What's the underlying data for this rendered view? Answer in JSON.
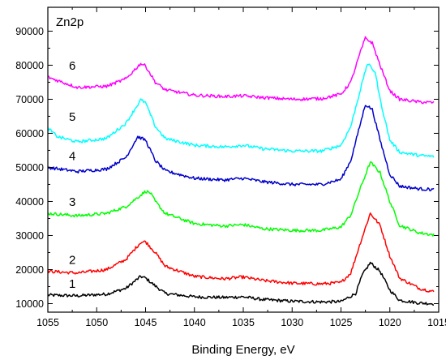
{
  "chart_data": {
    "type": "line",
    "title": "Zn2p",
    "xlabel": "Binding Energy, eV",
    "ylabel": "",
    "xlim": [
      1055,
      1015
    ],
    "ylim": [
      7500,
      97000
    ],
    "x_reversed": true,
    "grid": false,
    "legend": "none",
    "x_ticks": [
      1055,
      1050,
      1045,
      1040,
      1035,
      1030,
      1025,
      1020,
      1015
    ],
    "y_ticks": [
      10000,
      20000,
      30000,
      40000,
      50000,
      60000,
      70000,
      80000,
      90000
    ],
    "series": [
      {
        "name": "1",
        "color": "#000000",
        "points": [
          [
            1055,
            12500
          ],
          [
            1052,
            12300
          ],
          [
            1049,
            12800
          ],
          [
            1047,
            14500
          ],
          [
            1045.5,
            18000
          ],
          [
            1045,
            17500
          ],
          [
            1044,
            15200
          ],
          [
            1043,
            13000
          ],
          [
            1040,
            12000
          ],
          [
            1037,
            11800
          ],
          [
            1035,
            12000
          ],
          [
            1033,
            11200
          ],
          [
            1030,
            10700
          ],
          [
            1027,
            10500
          ],
          [
            1025,
            10600
          ],
          [
            1023.5,
            13000
          ],
          [
            1022.8,
            18500
          ],
          [
            1022,
            22000
          ],
          [
            1021,
            19500
          ],
          [
            1020,
            14000
          ],
          [
            1019,
            11000
          ],
          [
            1017,
            10200
          ],
          [
            1015.5,
            10000
          ]
        ]
      },
      {
        "name": "2",
        "color": "#ff0000",
        "points": [
          [
            1055,
            19500
          ],
          [
            1052,
            19000
          ],
          [
            1049,
            20000
          ],
          [
            1047,
            23000
          ],
          [
            1045.5,
            28000
          ],
          [
            1045,
            28200
          ],
          [
            1044,
            25000
          ],
          [
            1043,
            21000
          ],
          [
            1040,
            18000
          ],
          [
            1037,
            17300
          ],
          [
            1035,
            17800
          ],
          [
            1033,
            16800
          ],
          [
            1030,
            16000
          ],
          [
            1027,
            15800
          ],
          [
            1025,
            16200
          ],
          [
            1024,
            19000
          ],
          [
            1023,
            28000
          ],
          [
            1022,
            36500
          ],
          [
            1021,
            33000
          ],
          [
            1020,
            24000
          ],
          [
            1019,
            17500
          ],
          [
            1017,
            14500
          ],
          [
            1015.5,
            13500
          ]
        ]
      },
      {
        "name": "3",
        "color": "#00ff00",
        "points": [
          [
            1055,
            36500
          ],
          [
            1052,
            35800
          ],
          [
            1049,
            36500
          ],
          [
            1047,
            38500
          ],
          [
            1045,
            43000
          ],
          [
            1044.5,
            42500
          ],
          [
            1044,
            40000
          ],
          [
            1043,
            36500
          ],
          [
            1040,
            33500
          ],
          [
            1037,
            32800
          ],
          [
            1035,
            33200
          ],
          [
            1033,
            32000
          ],
          [
            1030,
            31500
          ],
          [
            1027,
            31500
          ],
          [
            1025,
            32500
          ],
          [
            1024,
            36000
          ],
          [
            1023,
            44000
          ],
          [
            1022,
            51500
          ],
          [
            1021,
            48500
          ],
          [
            1020,
            40000
          ],
          [
            1019,
            33000
          ],
          [
            1017,
            30800
          ],
          [
            1015.5,
            30200
          ]
        ]
      },
      {
        "name": "4",
        "color": "#0000cc",
        "points": [
          [
            1055,
            50000
          ],
          [
            1052,
            48800
          ],
          [
            1049,
            49500
          ],
          [
            1047,
            53000
          ],
          [
            1045.8,
            59000
          ],
          [
            1045,
            58000
          ],
          [
            1044,
            52000
          ],
          [
            1043,
            49000
          ],
          [
            1040,
            46800
          ],
          [
            1037,
            46300
          ],
          [
            1035,
            46800
          ],
          [
            1033,
            45800
          ],
          [
            1030,
            45000
          ],
          [
            1027,
            45000
          ],
          [
            1025,
            46500
          ],
          [
            1024,
            52000
          ],
          [
            1023,
            63000
          ],
          [
            1022.5,
            68500
          ],
          [
            1021.8,
            67000
          ],
          [
            1021,
            58000
          ],
          [
            1020,
            48000
          ],
          [
            1019,
            44500
          ],
          [
            1017,
            43700
          ],
          [
            1015.5,
            43500
          ]
        ]
      },
      {
        "name": "5",
        "color": "#00ffff",
        "points": [
          [
            1055,
            61500
          ],
          [
            1054,
            59000
          ],
          [
            1052,
            57500
          ],
          [
            1049,
            58500
          ],
          [
            1047,
            63000
          ],
          [
            1045.5,
            69800
          ],
          [
            1045,
            69000
          ],
          [
            1044,
            62000
          ],
          [
            1043,
            58500
          ],
          [
            1040,
            56500
          ],
          [
            1037,
            56000
          ],
          [
            1035,
            56500
          ],
          [
            1033,
            55500
          ],
          [
            1030,
            54800
          ],
          [
            1027,
            54800
          ],
          [
            1025,
            56500
          ],
          [
            1024,
            62000
          ],
          [
            1023,
            73000
          ],
          [
            1022.3,
            80500
          ],
          [
            1021.5,
            78000
          ],
          [
            1021,
            70000
          ],
          [
            1020,
            58000
          ],
          [
            1019,
            54500
          ],
          [
            1017,
            53500
          ],
          [
            1015.5,
            53200
          ]
        ]
      },
      {
        "name": "6",
        "color": "#ff00ff",
        "points": [
          [
            1055,
            76500
          ],
          [
            1052,
            73500
          ],
          [
            1049,
            73800
          ],
          [
            1047,
            76000
          ],
          [
            1045.5,
            80500
          ],
          [
            1045,
            79800
          ],
          [
            1044,
            75000
          ],
          [
            1043,
            72800
          ],
          [
            1040,
            71200
          ],
          [
            1037,
            70800
          ],
          [
            1035,
            71000
          ],
          [
            1033,
            70500
          ],
          [
            1030,
            70000
          ],
          [
            1027,
            70200
          ],
          [
            1025,
            71500
          ],
          [
            1024,
            75000
          ],
          [
            1023,
            84000
          ],
          [
            1022.5,
            88000
          ],
          [
            1021.8,
            86500
          ],
          [
            1021,
            80000
          ],
          [
            1020,
            72500
          ],
          [
            1019,
            70000
          ],
          [
            1017,
            69200
          ],
          [
            1015.5,
            69000
          ]
        ]
      }
    ]
  }
}
